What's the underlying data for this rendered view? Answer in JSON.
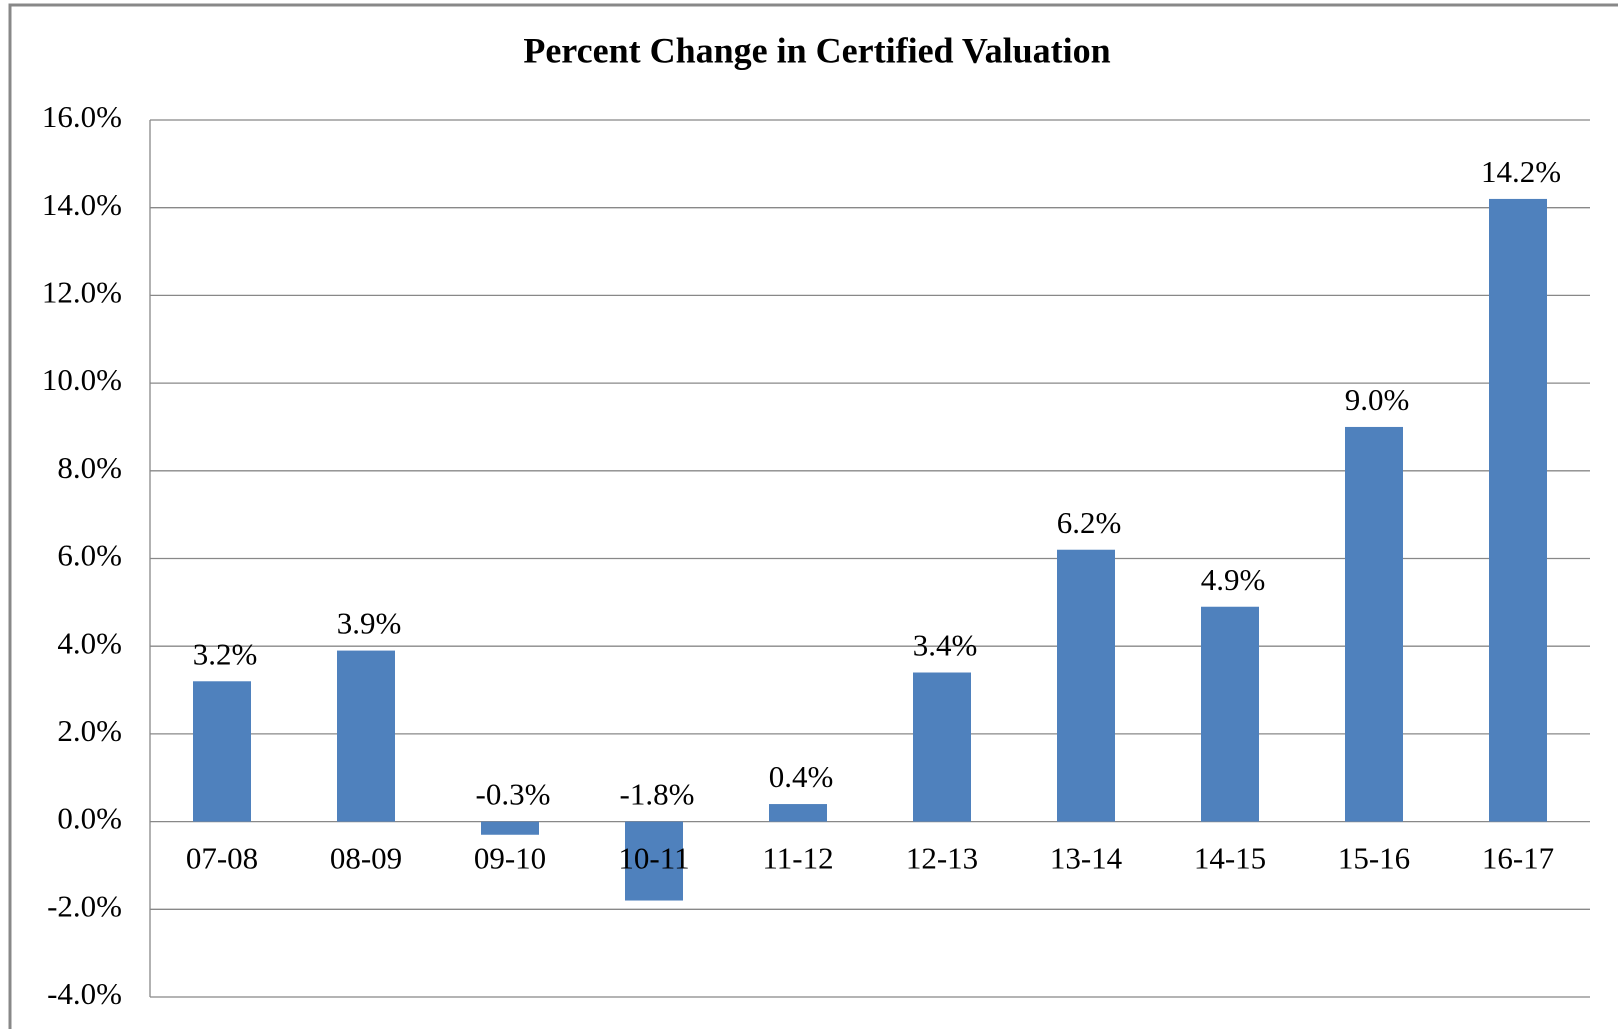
{
  "chart_data": {
    "type": "bar",
    "title": "Percent Change in Certified Valuation",
    "categories": [
      "07-08",
      "08-09",
      "09-10",
      "10-11",
      "11-12",
      "12-13",
      "13-14",
      "14-15",
      "15-16",
      "16-17"
    ],
    "values": [
      3.2,
      3.9,
      -0.3,
      -1.8,
      0.4,
      3.4,
      6.2,
      4.9,
      9.0,
      14.2
    ],
    "value_labels": [
      "3.2%",
      "3.9%",
      "-0.3%",
      "-1.8%",
      "0.4%",
      "3.4%",
      "6.2%",
      "4.9%",
      "9.0%",
      "14.2%"
    ],
    "color": "#4f81bd",
    "ylim": [
      -4,
      16
    ],
    "yticks": [
      {
        "value": -4,
        "label": "-4.0%"
      },
      {
        "value": -2,
        "label": "-2.0%"
      },
      {
        "value": 0,
        "label": "0.0%"
      },
      {
        "value": 2,
        "label": "2.0%"
      },
      {
        "value": 4,
        "label": "4.0%"
      },
      {
        "value": 6,
        "label": "6.0%"
      },
      {
        "value": 8,
        "label": "8.0%"
      },
      {
        "value": 10,
        "label": "10.0%"
      },
      {
        "value": 12,
        "label": "12.0%"
      },
      {
        "value": 14,
        "label": "14.0%"
      },
      {
        "value": 16,
        "label": "16.0%"
      }
    ],
    "grid": true
  }
}
